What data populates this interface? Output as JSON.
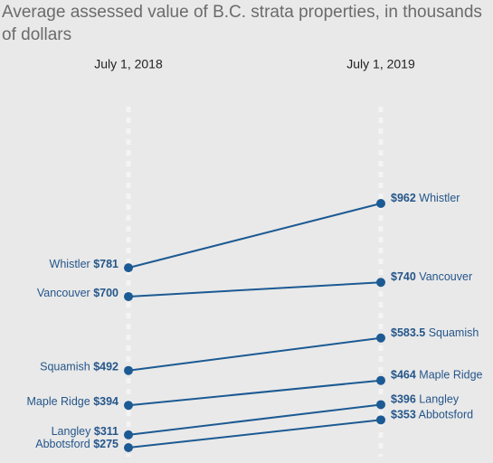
{
  "chart_data": {
    "type": "slope",
    "title_lines": [
      "Average assessed value of B.C. strata properties, in thousands",
      "of dollars"
    ],
    "categories": [
      "July 1, 2018",
      "July 1, 2019"
    ],
    "color": "#1c5a93",
    "label_color": "#25568a",
    "series": [
      {
        "name": "Whistler",
        "values": [
          781,
          962
        ],
        "value_labels": [
          "$781",
          "$962"
        ]
      },
      {
        "name": "Vancouver",
        "values": [
          700,
          740
        ],
        "value_labels": [
          "$700",
          "$740"
        ]
      },
      {
        "name": "Squamish",
        "values": [
          492,
          583.5
        ],
        "value_labels": [
          "$492",
          "$583.5"
        ]
      },
      {
        "name": "Maple Ridge",
        "values": [
          394,
          464
        ],
        "value_labels": [
          "$394",
          "$464"
        ]
      },
      {
        "name": "Langley",
        "values": [
          311,
          396
        ],
        "value_labels": [
          "$311",
          "$396"
        ]
      },
      {
        "name": "Abbotsford",
        "values": [
          275,
          353
        ],
        "value_labels": [
          "$275",
          "$353"
        ]
      }
    ]
  }
}
